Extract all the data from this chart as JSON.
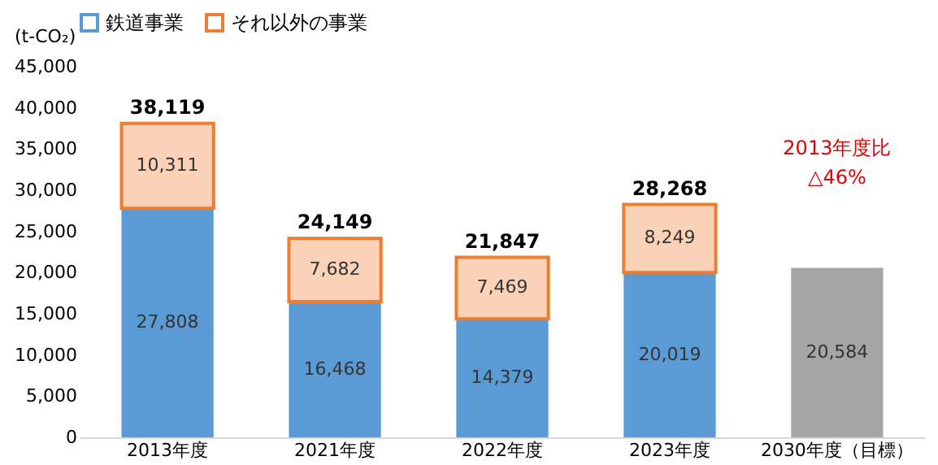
{
  "chart_data": {
    "type": "bar",
    "stacked": true,
    "ylabel": "(t-CO₂)",
    "legend": "top",
    "categories": [
      "2013年度",
      "2021年度",
      "2022年度",
      "2023年度",
      "2030年度（目標）"
    ],
    "series": [
      {
        "name": "鉄道事業",
        "color": "#5b9bd5",
        "values": [
          27808,
          16468,
          14379,
          20019,
          null
        ],
        "value_labels": [
          "27,808",
          "16,468",
          "14,379",
          "20,019",
          null
        ]
      },
      {
        "name": "それ以外の事業",
        "color": "#ed7d31",
        "values": [
          10311,
          7682,
          7469,
          8249,
          null
        ],
        "value_labels": [
          "10,311",
          "7,682",
          "7,469",
          "8,249",
          null
        ]
      },
      {
        "color": "#a5a5a5",
        "values": [
          null,
          null,
          null,
          null,
          20584
        ],
        "value_labels": [
          null,
          null,
          null,
          null,
          "20,584"
        ]
      }
    ],
    "totals": [
      "38,119",
      "24,149",
      "21,847",
      "28,268",
      null
    ],
    "ylim": [
      0,
      45000
    ],
    "yticks": [
      {
        "value": 0,
        "label": "0"
      },
      {
        "value": 5000,
        "label": "5,000"
      },
      {
        "value": 10000,
        "label": "10,000"
      },
      {
        "value": 15000,
        "label": "15,000"
      },
      {
        "value": 20000,
        "label": "20,000"
      },
      {
        "value": 25000,
        "label": "25,000"
      },
      {
        "value": 30000,
        "label": "30,000"
      },
      {
        "value": 35000,
        "label": "35,000"
      },
      {
        "value": 40000,
        "label": "40,000"
      },
      {
        "value": 45000,
        "label": "45,000"
      }
    ],
    "grid": false,
    "annotations": [
      "2013年度比\n△46%"
    ]
  }
}
